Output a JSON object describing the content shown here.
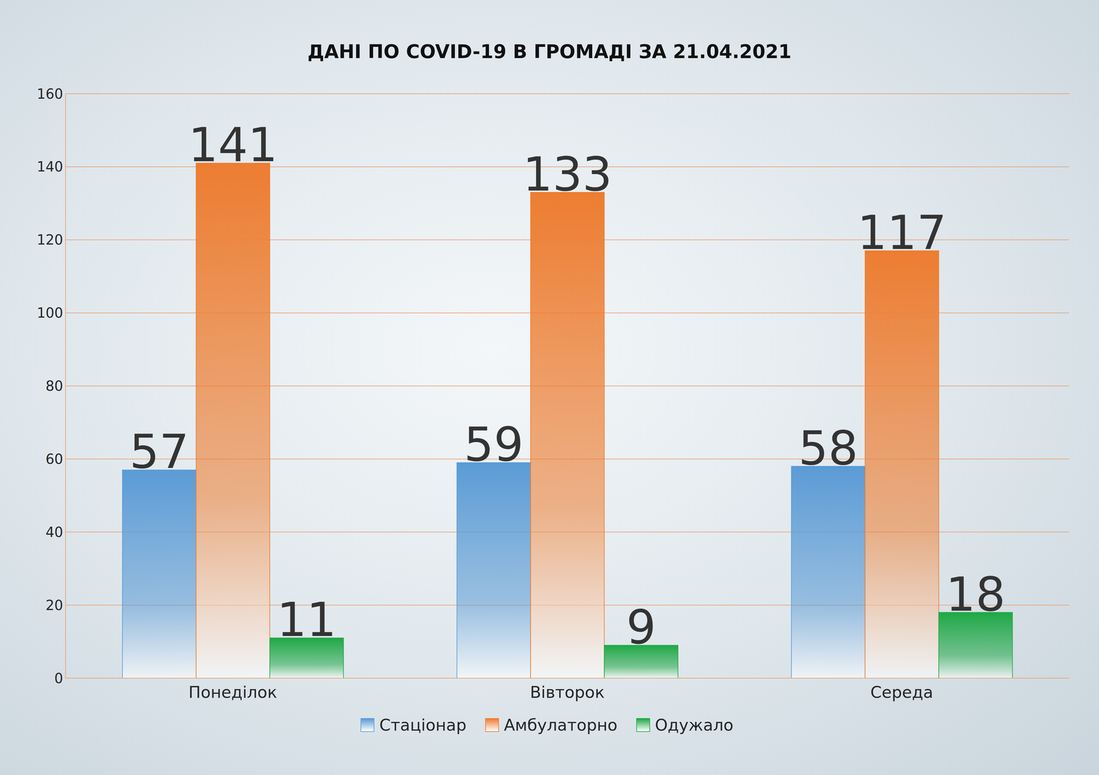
{
  "chart_data": {
    "type": "bar",
    "title": "ДАНІ ПО COVID-19 В ГРОМАДІ ЗА 21.04.2021",
    "categories": [
      "Понеділок",
      "Вівторок",
      "Середа"
    ],
    "series": [
      {
        "name": "Стаціонар",
        "color": "#5b9bd5",
        "values": [
          57,
          59,
          58
        ]
      },
      {
        "name": "Амбулаторно",
        "color": "#ed7d31",
        "values": [
          141,
          133,
          117
        ]
      },
      {
        "name": "Одужало",
        "color": "#1fa846",
        "values": [
          11,
          9,
          18
        ]
      }
    ],
    "ylim": [
      0,
      160
    ],
    "yticks": [
      0,
      20,
      40,
      60,
      80,
      100,
      120,
      140,
      160
    ],
    "grid": true,
    "legend": "bottom",
    "data_labels": true
  }
}
